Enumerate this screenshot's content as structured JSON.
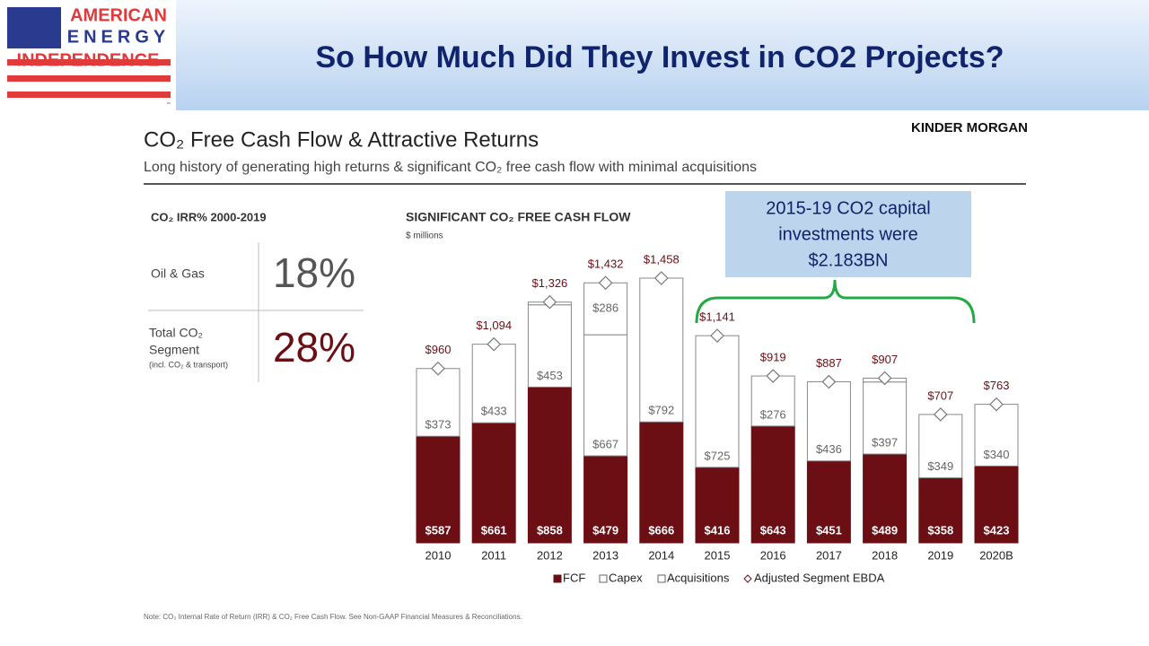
{
  "logo": {
    "lines": [
      "AMERICAN",
      "ENERGY",
      "INDEPENDENCE"
    ],
    "mark": "™"
  },
  "header": {
    "title": "So How Much Did They Invest in CO2 Projects?"
  },
  "brand": "KINDER MORGAN",
  "slide": {
    "title": "CO₂ Free Cash Flow & Attractive Returns",
    "subtitle": "Long history of generating high returns & significant CO₂ free cash flow with minimal acquisitions"
  },
  "irr": {
    "title": "CO₂ IRR% 2000-2019",
    "rows": [
      {
        "label": [
          "Oil & Gas"
        ],
        "value": "18%"
      },
      {
        "label": [
          "Total CO₂",
          "Segment"
        ],
        "note": "(incl. CO₂ & transport)",
        "value": "28%"
      }
    ]
  },
  "callout": {
    "lines": [
      "2015-19 CO2 capital",
      "investments were",
      "$2.183BN"
    ]
  },
  "note": "Note:  CO₂ Internal Rate of Return (IRR) & CO₂ Free Cash Flow. See Non-GAAP Financial Measures & Reconciliations.",
  "chart_data": {
    "type": "stacked_bar",
    "title": "SIGNIFICANT CO₂ FREE CASH FLOW",
    "subtitle": "$ millions",
    "categories": [
      "2010",
      "2011",
      "2012",
      "2013",
      "2014",
      "2015",
      "2016",
      "2017",
      "2018",
      "2019",
      "2020B"
    ],
    "ylim": [
      0,
      1500
    ],
    "series": [
      {
        "name": "FCF",
        "color": "#6b0f14",
        "values": [
          587,
          661,
          858,
          479,
          666,
          416,
          643,
          451,
          489,
          358,
          423
        ],
        "value_labels": [
          "$587",
          "$661",
          "$858",
          "$479",
          "$666",
          "$416",
          "$643",
          "$451",
          "$489",
          "$358",
          "$423"
        ]
      },
      {
        "name": "Capex",
        "color": "#ffffff",
        "values": [
          373,
          433,
          453,
          667,
          792,
          725,
          276,
          436,
          397,
          349,
          340
        ],
        "value_labels": [
          "$373",
          "$433",
          "$453",
          "$667",
          "$792",
          "$725",
          "$276",
          "$436",
          "$397",
          "$349",
          "$340"
        ]
      },
      {
        "name": "Acquisitions",
        "color": "#ffffff",
        "values": [
          0,
          0,
          15,
          286,
          0,
          0,
          0,
          0,
          21,
          0,
          0
        ],
        "value_labels": [
          null,
          null,
          null,
          "$286",
          null,
          null,
          null,
          null,
          null,
          null,
          null
        ]
      }
    ],
    "ebda": {
      "name": "Adjusted Segment EBDA",
      "color": "#6b0f14",
      "values": [
        960,
        1094,
        1326,
        1432,
        1458,
        1141,
        919,
        887,
        907,
        707,
        763
      ],
      "value_labels": [
        "$960",
        "$1,094",
        "$1,326",
        "$1,432",
        "$1,458",
        "$1,141",
        "$919",
        "$887",
        "$907",
        "$707",
        "$763"
      ]
    }
  }
}
